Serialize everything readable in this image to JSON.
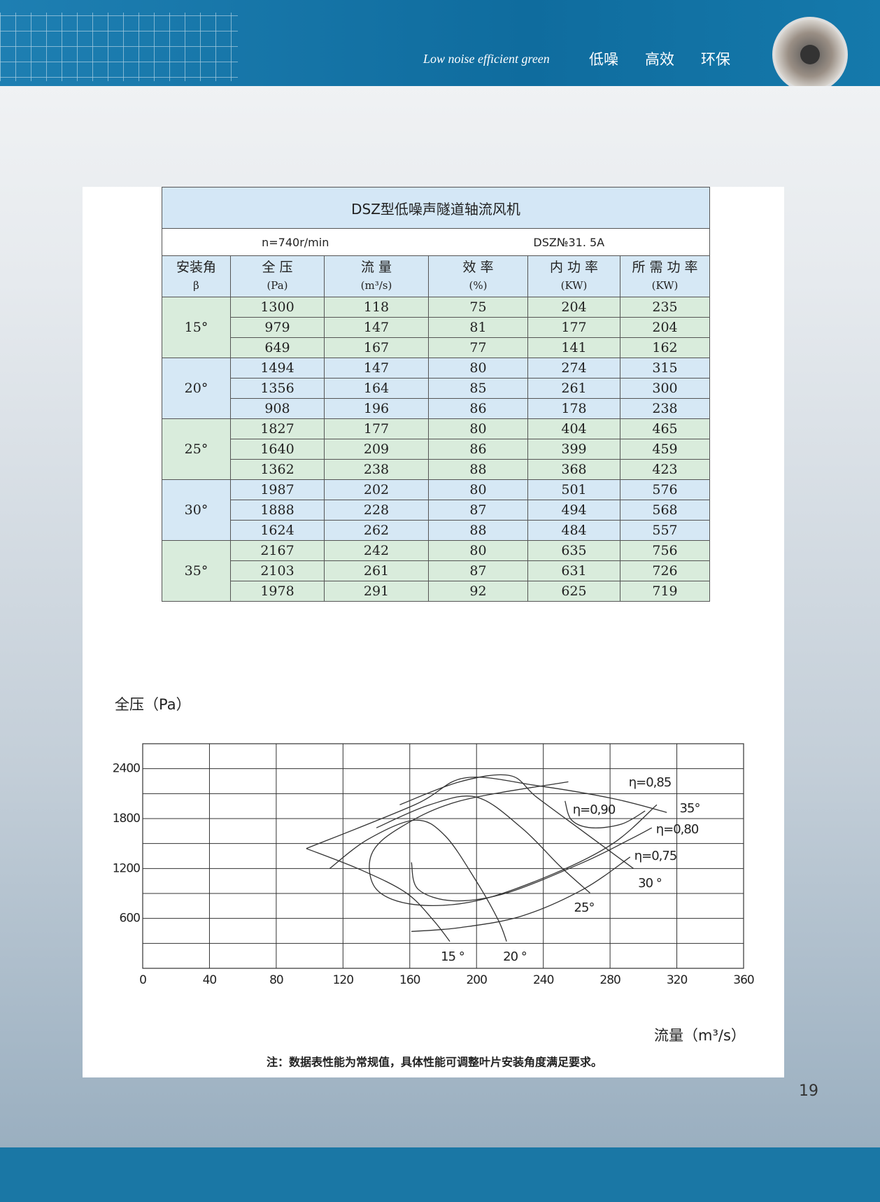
{
  "header": {
    "tagline": "Low noise efficient green",
    "slogan": [
      "低噪",
      "高效",
      "环保"
    ]
  },
  "table": {
    "title": "DSZ型低噪声隧道轴流风机",
    "speed": "n=740r/min",
    "model": "DSZ№31. 5A",
    "columns": [
      {
        "name": "安装角",
        "unit": "β"
      },
      {
        "name": "全 压",
        "unit": "(Pa)"
      },
      {
        "name": "流 量",
        "unit": "(m³/s)"
      },
      {
        "name": "效 率",
        "unit": "(%)"
      },
      {
        "name": "内 功 率",
        "unit": "(KW)"
      },
      {
        "name": "所 需 功 率",
        "unit": "(KW)"
      }
    ],
    "groups": [
      {
        "angle": "15°",
        "rows": [
          [
            1300,
            118,
            75,
            204,
            235
          ],
          [
            979,
            147,
            81,
            177,
            204
          ],
          [
            649,
            167,
            77,
            141,
            162
          ]
        ]
      },
      {
        "angle": "20°",
        "rows": [
          [
            1494,
            147,
            80,
            274,
            315
          ],
          [
            1356,
            164,
            85,
            261,
            300
          ],
          [
            908,
            196,
            86,
            178,
            238
          ]
        ]
      },
      {
        "angle": "25°",
        "rows": [
          [
            1827,
            177,
            80,
            404,
            465
          ],
          [
            1640,
            209,
            86,
            399,
            459
          ],
          [
            1362,
            238,
            88,
            368,
            423
          ]
        ]
      },
      {
        "angle": "30°",
        "rows": [
          [
            1987,
            202,
            80,
            501,
            576
          ],
          [
            1888,
            228,
            87,
            494,
            568
          ],
          [
            1624,
            262,
            88,
            484,
            557
          ]
        ]
      },
      {
        "angle": "35°",
        "rows": [
          [
            2167,
            242,
            80,
            635,
            756
          ],
          [
            2103,
            261,
            87,
            631,
            726
          ],
          [
            1978,
            291,
            92,
            625,
            719
          ]
        ]
      }
    ]
  },
  "chart_data": {
    "type": "line",
    "ylabel": "全压（Pa）",
    "xlabel": "流量（m³/s）",
    "xlim": [
      0,
      360
    ],
    "xticks": [
      0,
      40,
      80,
      120,
      160,
      200,
      240,
      280,
      320,
      360
    ],
    "ylim": [
      0,
      2700
    ],
    "yticks": [
      600,
      1200,
      1800,
      2400
    ],
    "yminorticks": [
      300,
      900,
      1500,
      2100,
      2700
    ],
    "grid": true,
    "series": [
      {
        "name": "15 °",
        "color": "#333333",
        "x": [
          98,
          131,
          158,
          174,
          184
        ],
        "values": [
          1440,
          1181,
          905,
          581,
          323
        ]
      },
      {
        "name": "20 °",
        "color": "#333333",
        "x": [
          112,
          135,
          163,
          181,
          200,
          213,
          218
        ],
        "values": [
          1200,
          1551,
          1781,
          1597,
          1043,
          581,
          323
        ]
      },
      {
        "name": "25°",
        "color": "#333333",
        "x": [
          140,
          172,
          200,
          227,
          250,
          268
        ],
        "values": [
          1689,
          1966,
          2058,
          1689,
          1228,
          905
        ]
      },
      {
        "name": "30 °",
        "color": "#333333",
        "x": [
          154,
          190,
          220,
          236,
          264,
          294
        ],
        "values": [
          1966,
          2243,
          2317,
          2058,
          1643,
          1200
        ]
      },
      {
        "name": "35°",
        "color": "#333333",
        "x": [
          98,
          163,
          193,
          236,
          282,
          314
        ],
        "values": [
          1440,
          1966,
          2289,
          2197,
          2040,
          1874
        ]
      },
      {
        "name": "η=0,85",
        "color": "#333333",
        "x": [
          255,
          190,
          154,
          137,
          140,
          163,
          200,
          246,
          282,
          308
        ],
        "values": [
          2243,
          2012,
          1689,
          1366,
          951,
          766,
          812,
          1135,
          1504,
          1966
        ]
      },
      {
        "name": "η=0,90",
        "color": "#333333",
        "x": [
          253,
          257,
          269,
          287,
          301
        ],
        "values": [
          2012,
          1781,
          1689,
          1735,
          1892
        ]
      },
      {
        "name": "η=0,80",
        "color": "#333333",
        "x": [
          161,
          165,
          186,
          218,
          264,
          292,
          305
        ],
        "values": [
          1274,
          951,
          812,
          905,
          1274,
          1551,
          1689
        ]
      },
      {
        "name": "η=0,75",
        "color": "#333333",
        "x": [
          161,
          190,
          227,
          264,
          292
        ],
        "values": [
          443,
          489,
          628,
          951,
          1338
        ]
      }
    ]
  },
  "note": "注：数据表性能为常规值，具体性能可调整叶片安装角度满足要求。",
  "page_number": "19"
}
